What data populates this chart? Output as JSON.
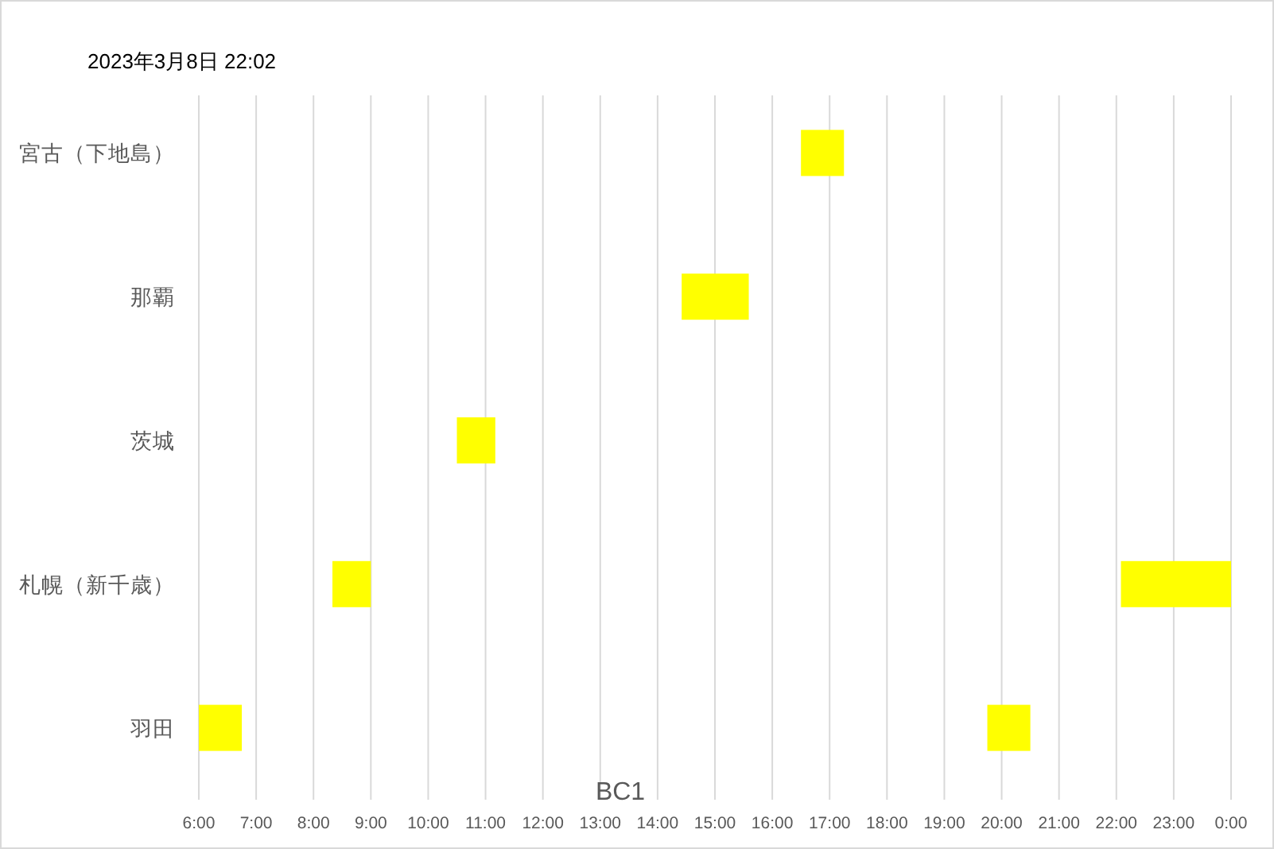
{
  "chart_data": {
    "type": "bar",
    "orientation": "horizontal",
    "title": "2023年3月8日 22:02",
    "categories": [
      "宮古（下地島）",
      "那覇",
      "茨城",
      "札幌（新千歳）",
      "羽田"
    ],
    "series": [
      {
        "color": "#ffff00",
        "base": [
          16.5,
          14.42,
          10.5,
          8.33,
          6
        ],
        "values": [
          0.75,
          1.17,
          0.67,
          0.67,
          0.75
        ]
      },
      {
        "color": "#ffff00",
        "base": [
          null,
          null,
          null,
          22.08,
          19.75
        ],
        "values": [
          null,
          null,
          null,
          1.92,
          0.75
        ]
      }
    ],
    "xlim": [
      6,
      24
    ],
    "xticks": [
      {
        "value": 6,
        "label": "6:00"
      },
      {
        "value": 7,
        "label": "7:00"
      },
      {
        "value": 8,
        "label": "8:00"
      },
      {
        "value": 9,
        "label": "9:00"
      },
      {
        "value": 10,
        "label": "10:00"
      },
      {
        "value": 11,
        "label": "11:00"
      },
      {
        "value": 12,
        "label": "12:00"
      },
      {
        "value": 13,
        "label": "13:00"
      },
      {
        "value": 14,
        "label": "14:00"
      },
      {
        "value": 15,
        "label": "15:00"
      },
      {
        "value": 16,
        "label": "16:00"
      },
      {
        "value": 17,
        "label": "17:00"
      },
      {
        "value": 18,
        "label": "18:00"
      },
      {
        "value": 19,
        "label": "19:00"
      },
      {
        "value": 20,
        "label": "20:00"
      },
      {
        "value": 21,
        "label": "21:00"
      },
      {
        "value": 22,
        "label": "22:00"
      },
      {
        "value": 23,
        "label": "23:00"
      },
      {
        "value": 24,
        "label": "0:00"
      }
    ],
    "grid": "x",
    "annotations": [
      "BC1"
    ]
  }
}
